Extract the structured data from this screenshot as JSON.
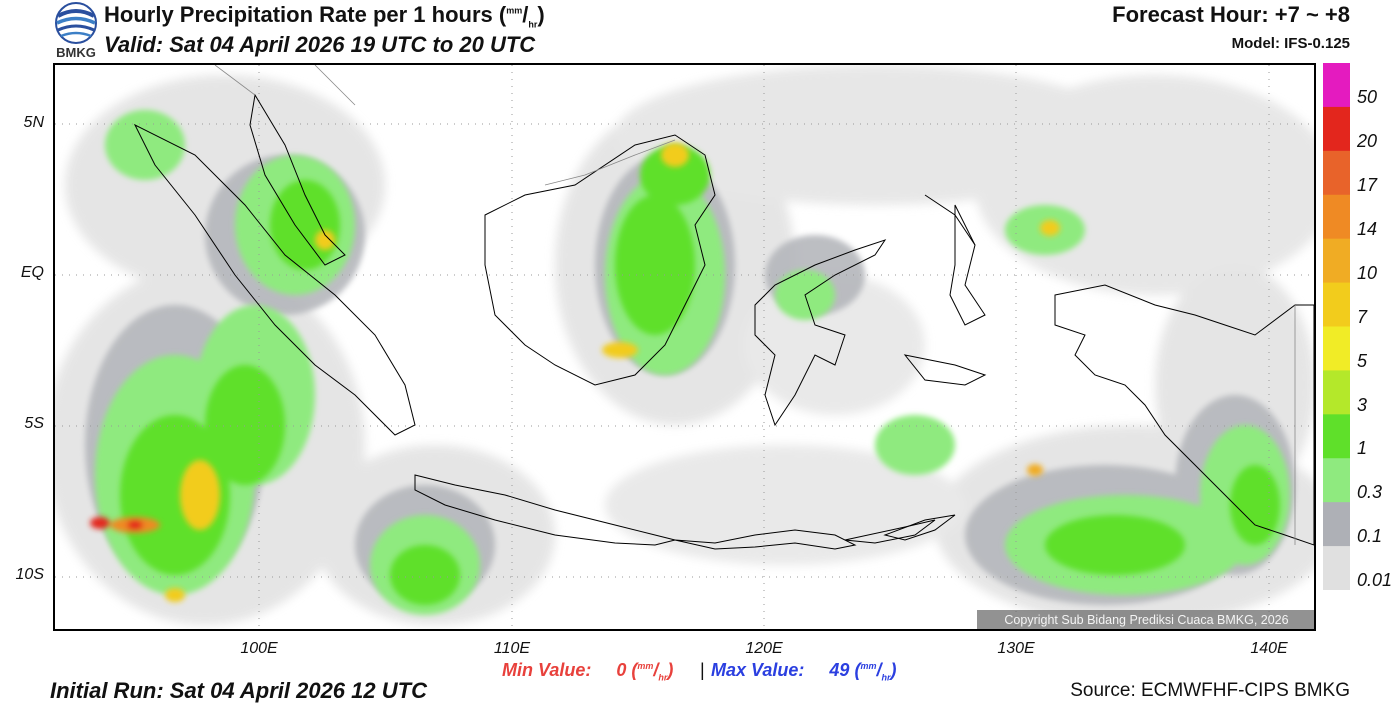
{
  "header": {
    "title": "Hourly Precipitation Rate per 1 hours",
    "unit_num": "mm",
    "unit_den": "hr",
    "valid": "Valid: Sat 04 April 2026 19 UTC to 20 UTC",
    "forecast_hour": "Forecast Hour: +7 ~ +8",
    "model": "Model: IFS-0.125",
    "logo_text": "BMKG"
  },
  "map": {
    "lat_labels": [
      "5N",
      "EQ",
      "5S",
      "10S"
    ],
    "lon_labels": [
      "100E",
      "110E",
      "120E",
      "130E",
      "140E"
    ],
    "copyright": "Copyright Sub Bidang Prediksi Cuaca BMKG, 2026"
  },
  "legend": {
    "labels": [
      "50",
      "20",
      "17",
      "14",
      "10",
      "7",
      "5",
      "3",
      "1",
      "0.3",
      "0.1",
      "0.01"
    ],
    "colors": [
      "#e41bbf",
      "#e3261d",
      "#e8632a",
      "#ef8a24",
      "#f0ac24",
      "#f2cc1c",
      "#f1ec26",
      "#b4e82a",
      "#5fe02a",
      "#8fea7f",
      "#aeb0b6",
      "#e0e0e0"
    ]
  },
  "footer": {
    "min_label": "Min Value:",
    "min_value": "0",
    "separator": "|",
    "max_label": "Max Value:",
    "max_value": "49",
    "min_color": "#e8413c",
    "max_color": "#2b3fe0",
    "initial_run": "Initial Run: Sat 04 April 2026 12 UTC",
    "source": "Source: ECMWFHF-CIPS BMKG"
  }
}
